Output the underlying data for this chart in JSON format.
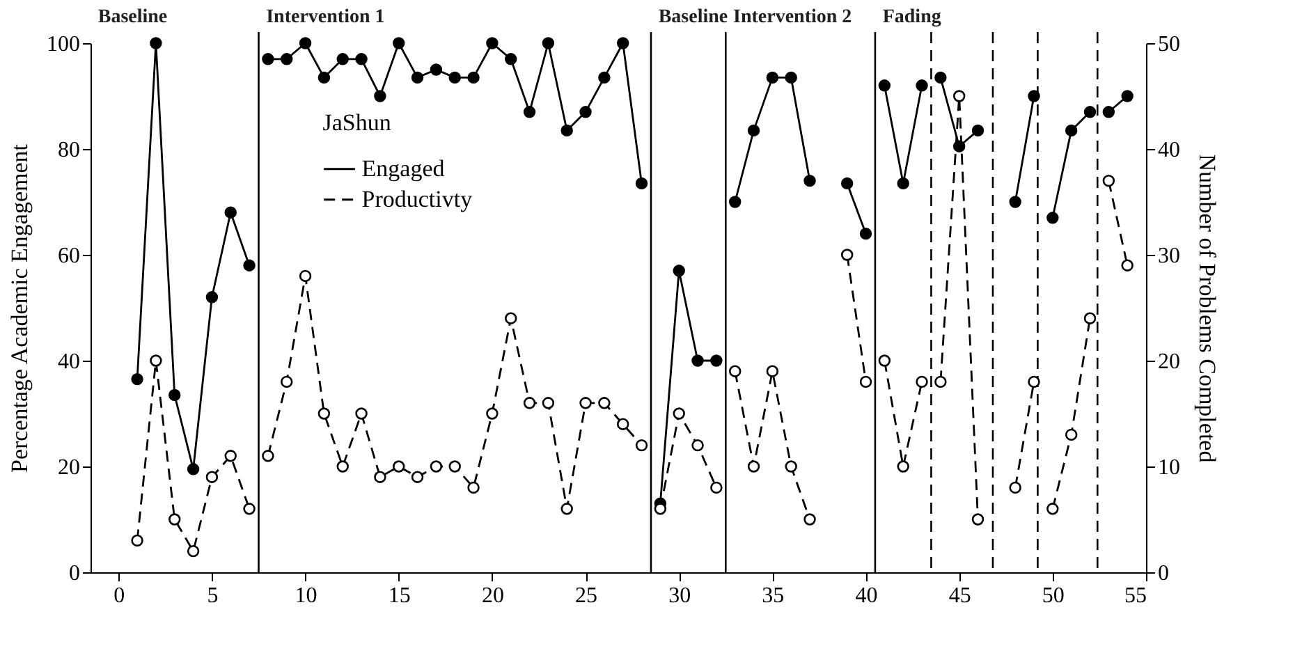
{
  "chart_data": {
    "type": "line",
    "ylabel": "Percentage  Academic Engagement",
    "y2label": "Number  of  Problems  Completed",
    "legend_title": "JaShun",
    "legend": "top left",
    "marker": "circle",
    "grid": false,
    "x": [
      1,
      2,
      3,
      4,
      5,
      6,
      7,
      8,
      9,
      10,
      11,
      12,
      13,
      14,
      15,
      16,
      17,
      18,
      19,
      20,
      21,
      22,
      23,
      24,
      25,
      26,
      27,
      28,
      29,
      30,
      31,
      32,
      33,
      34,
      35,
      36,
      37,
      38,
      39,
      40,
      41,
      42,
      43,
      44,
      45,
      46,
      47,
      48,
      49,
      50,
      51,
      52,
      53,
      54
    ],
    "series": [
      {
        "name": "Engaged",
        "color": "#000000",
        "line_style": "solid",
        "values": [
          36.5,
          100,
          33.5,
          19.5,
          52,
          68,
          58,
          97,
          97,
          100,
          93.5,
          97,
          97,
          90,
          100,
          93.5,
          95,
          93.5,
          93.5,
          100,
          97,
          87,
          100,
          83.5,
          87,
          93.5,
          100,
          73.5,
          13,
          57,
          40,
          40,
          70,
          83.5,
          93.5,
          93.5,
          74,
          null,
          73.5,
          64,
          92,
          73.5,
          92,
          93.5,
          80.5,
          83.5,
          null,
          70,
          90,
          67,
          83.5,
          87,
          87,
          90
        ]
      },
      {
        "name": "Productivty",
        "color": "#000000",
        "line_style": "dashed",
        "axis": "y2",
        "values": [
          3,
          20,
          5,
          2,
          9,
          11,
          6,
          11,
          18,
          28,
          15,
          10,
          15,
          9,
          10,
          9,
          10,
          10,
          8,
          15,
          24,
          16,
          16,
          6,
          16,
          16,
          14,
          12,
          6,
          15,
          12,
          8,
          19,
          10,
          19,
          10,
          5,
          null,
          30,
          18,
          20,
          10,
          18,
          18,
          45,
          5,
          null,
          8,
          18,
          6,
          13,
          24,
          37,
          29
        ]
      }
    ],
    "xlim": [
      -1.5,
      55
    ],
    "xticks": [
      0,
      5,
      10,
      15,
      20,
      25,
      30,
      35,
      40,
      45,
      50,
      55
    ],
    "ylim": [
      0,
      100
    ],
    "yticks": [
      0,
      20,
      40,
      60,
      80,
      100
    ],
    "y2lim": [
      0,
      50
    ],
    "y2ticks": [
      0,
      10,
      20,
      30,
      40,
      50
    ],
    "ref_lines": [
      {
        "axis": "x",
        "value": 7.5,
        "line_style": "solid"
      },
      {
        "axis": "x",
        "value": 28.5,
        "line_style": "solid"
      },
      {
        "axis": "x",
        "value": 32.5,
        "line_style": "solid"
      },
      {
        "axis": "x",
        "value": 40.5,
        "line_style": "solid"
      },
      {
        "axis": "x",
        "value": 43.5,
        "line_style": "dashed"
      },
      {
        "axis": "x",
        "value": 46.8,
        "line_style": "dashed"
      },
      {
        "axis": "x",
        "value": 49.2,
        "line_style": "dashed"
      },
      {
        "axis": "x",
        "value": 52.4,
        "line_style": "dashed"
      }
    ],
    "annotations": [
      "Baseline",
      "Intervention 1",
      "Baseline",
      "Intervention 2",
      "Fading"
    ]
  }
}
